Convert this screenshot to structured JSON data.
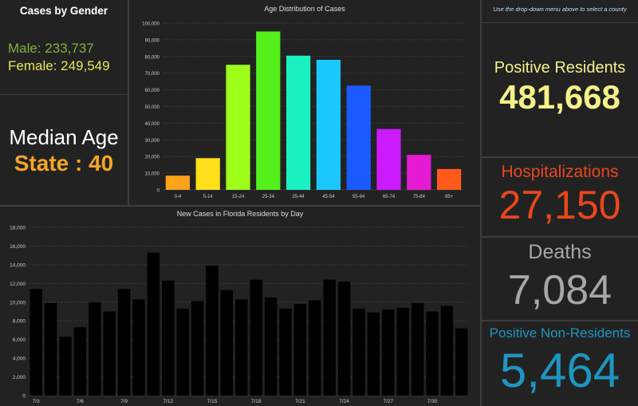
{
  "gender": {
    "title": "Cases by Gender",
    "male": "Male: 233,737",
    "female": "Female: 249,549"
  },
  "median": {
    "label": "Median Age",
    "value": "State : 40"
  },
  "stats": {
    "note": "Use the drop-down menu above to select a county",
    "positive_label": "Positive Residents",
    "positive_value": "481,668",
    "hosp_label": "Hospitalizations",
    "hosp_value": "27,150",
    "deaths_label": "Deaths",
    "deaths_value": "7,084",
    "nonres_label": "Positive Non-Residents",
    "nonres_value": "5,464"
  },
  "colors": {
    "background": "#222222",
    "male": "#7fb43a",
    "female": "#e9e652",
    "median_value": "#f5a623",
    "positive": "#f6f28a",
    "hosp": "#e8471e",
    "deaths": "#a7a7a7",
    "nonres": "#1d96c0",
    "daily_bar": "#f5a623"
  },
  "chart_data": [
    {
      "type": "bar",
      "title": "Age Distribution of Cases",
      "categories": [
        "0-4",
        "5-14",
        "15-24",
        "25-34",
        "35-44",
        "45-54",
        "55-64",
        "65-74",
        "75-84",
        "85+"
      ],
      "values": [
        8500,
        19000,
        75000,
        95000,
        80500,
        78000,
        62500,
        36500,
        21000,
        12500
      ],
      "colors": [
        "#ffa31a",
        "#ffe01a",
        "#9dff1a",
        "#53f01a",
        "#1af0c0",
        "#1ac8ff",
        "#1a5aff",
        "#cc1aff",
        "#e61ad2",
        "#ff5a1a"
      ],
      "ylim": [
        0,
        100000
      ],
      "yticks": [
        "0",
        "10,000",
        "20,000",
        "30,000",
        "40,000",
        "50,000",
        "60,000",
        "70,000",
        "80,000",
        "90,000",
        "100,000"
      ],
      "grid": true
    },
    {
      "type": "bar",
      "title": "New Cases in Florida Residents by Day",
      "categories": [
        "7/3",
        "7/4",
        "7/5",
        "7/6",
        "7/7",
        "7/8",
        "7/9",
        "7/10",
        "7/11",
        "7/12",
        "7/13",
        "7/14",
        "7/15",
        "7/16",
        "7/17",
        "7/18",
        "7/19",
        "7/20",
        "7/21",
        "7/22",
        "7/23",
        "7/24",
        "7/25",
        "7/26",
        "7/27",
        "7/28",
        "7/29",
        "7/30",
        "7/31",
        "8/1"
      ],
      "values": [
        11400,
        9900,
        6300,
        7300,
        10000,
        9000,
        11400,
        10300,
        15300,
        12300,
        9300,
        10100,
        13900,
        11300,
        10300,
        12400,
        10500,
        9300,
        9800,
        10200,
        12400,
        12200,
        9300,
        8900,
        9200,
        9400,
        9900,
        9000,
        9600,
        7200
      ],
      "xticks": [
        "7/3",
        "7/6",
        "7/9",
        "7/12",
        "7/15",
        "7/18",
        "7/21",
        "7/24",
        "7/27",
        "7/30"
      ],
      "ylim": [
        0,
        18000
      ],
      "yticks": [
        "0",
        "2,000",
        "4,000",
        "6,000",
        "8,000",
        "10,000",
        "12,000",
        "14,000",
        "16,000",
        "18,000"
      ],
      "grid": true
    }
  ]
}
